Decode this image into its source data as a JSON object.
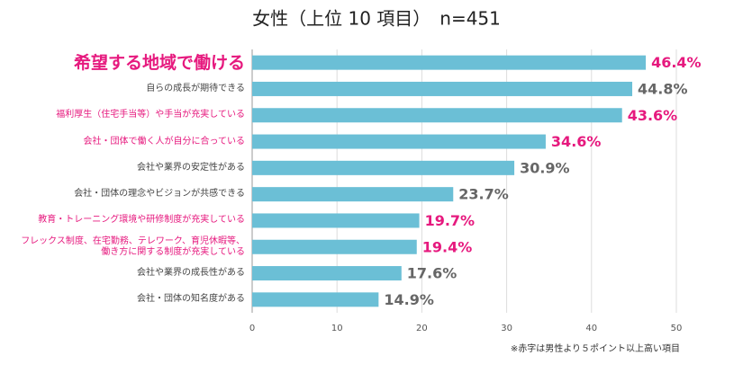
{
  "chart_data": {
    "type": "bar",
    "orientation": "horizontal",
    "title": "女性（上位 10 項目）　n=451",
    "categories": [
      "希望する地域で働ける",
      "自らの成長が期待できる",
      "福利厚生（住宅手当等）や手当が充実している",
      "会社・団体で働く人が自分に合っている",
      "会社や業界の安定性がある",
      "会社・団体の理念やビジョンが共感できる",
      "教育・トレーニング環境や研修制度が充実している",
      "フレックス制度、在宅勤務、テレワーク、育児休暇等、\n働き方に関する制度が充実している",
      "会社や業界の成長性がある",
      "会社・団体の知名度がある"
    ],
    "values": [
      46.4,
      44.8,
      43.6,
      34.6,
      30.9,
      23.7,
      19.7,
      19.4,
      17.6,
      14.9
    ],
    "value_labels": [
      "46.4%",
      "44.8%",
      "43.6%",
      "34.6%",
      "30.9%",
      "23.7%",
      "19.7%",
      "19.4%",
      "17.6%",
      "14.9%"
    ],
    "label_colors": [
      "#e6197e",
      "#444444",
      "#e6197e",
      "#e6197e",
      "#444444",
      "#444444",
      "#e6197e",
      "#e6197e",
      "#444444",
      "#444444"
    ],
    "color": "#6bbfd6",
    "xlim": [
      0,
      50
    ],
    "xticks": [
      0,
      10,
      20,
      30,
      40,
      50
    ],
    "grid": true,
    "annotation": "※赤字は男性より５ポイント以上高い項目"
  }
}
